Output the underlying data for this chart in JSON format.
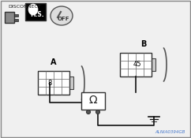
{
  "bg_color": "#f0f0f0",
  "border_color": "#000000",
  "title_text": "DISCONNECT",
  "label_A": "A",
  "label_B": "B",
  "pin_A": "8",
  "pin_B": "45",
  "part_code": "ALNIA0394GB",
  "hs_text": "H.S.",
  "off_text": "OFF"
}
